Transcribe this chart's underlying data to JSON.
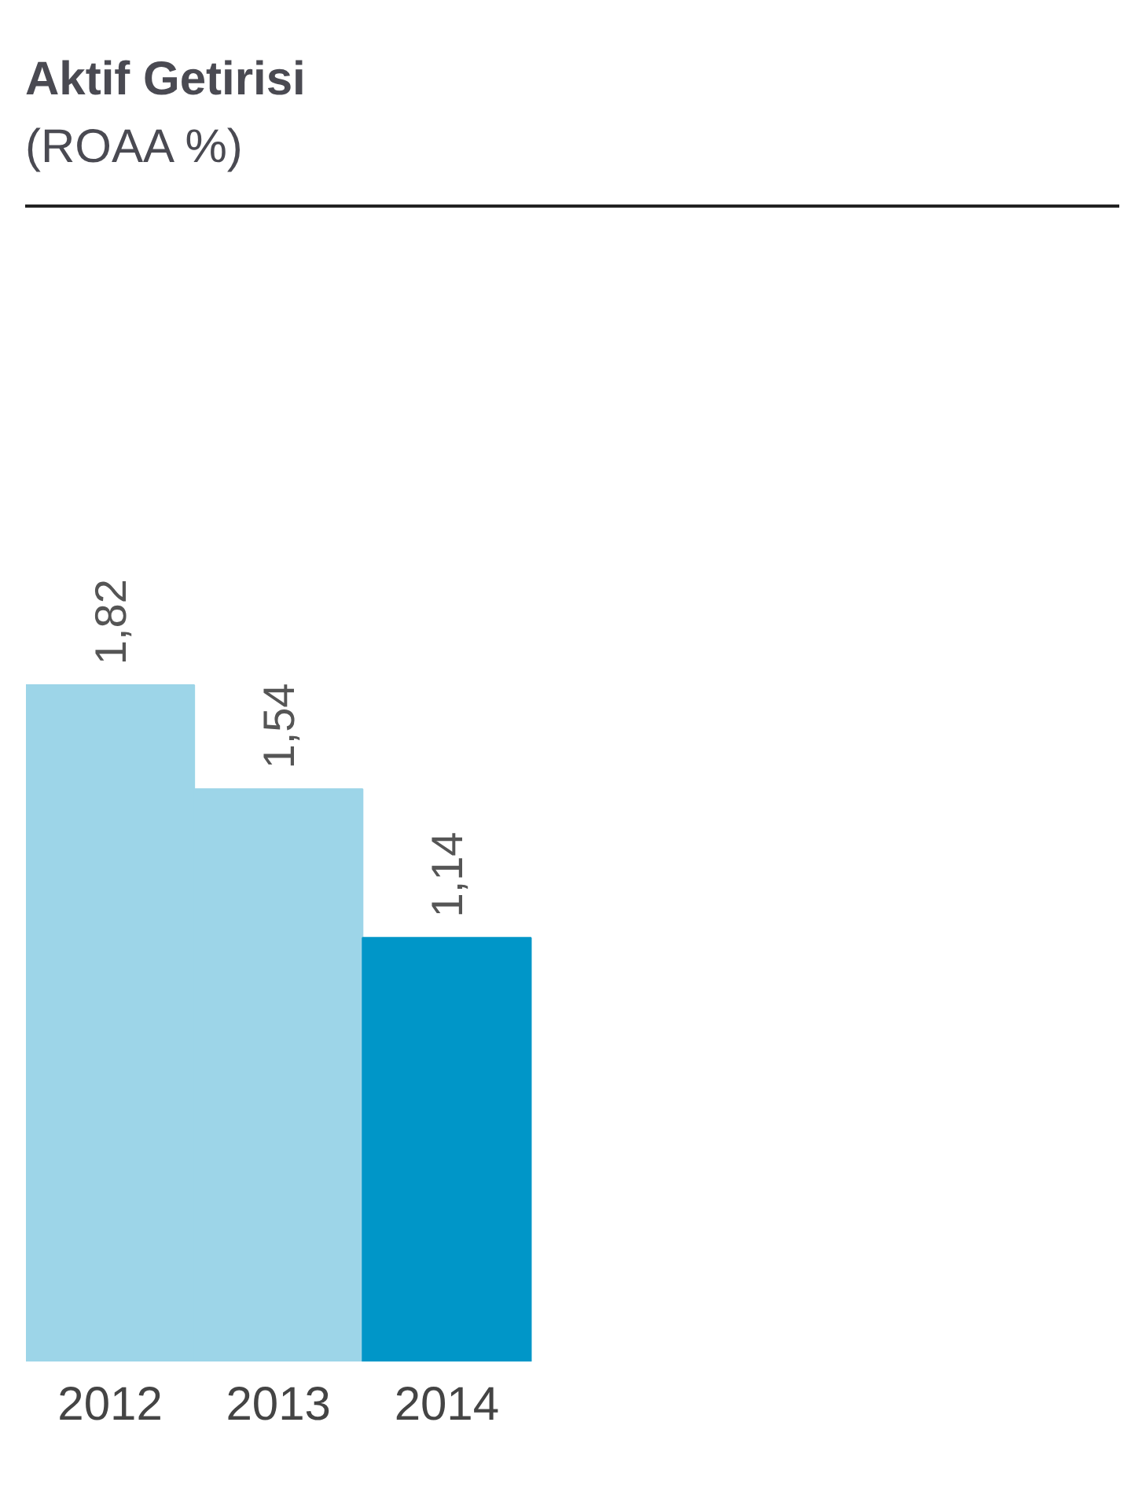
{
  "chart_data": {
    "type": "bar",
    "title": "Aktif Getirisi",
    "subtitle": "(ROAA %)",
    "categories": [
      "2012",
      "2013",
      "2014"
    ],
    "values": [
      1.82,
      1.54,
      1.14
    ],
    "colors": [
      "#9dd5e8",
      "#9dd5e8",
      "#0096c8"
    ],
    "value_labels": [
      "1,82",
      "1,54",
      "1,14"
    ],
    "tick_labels": "x",
    "grid": false
  }
}
